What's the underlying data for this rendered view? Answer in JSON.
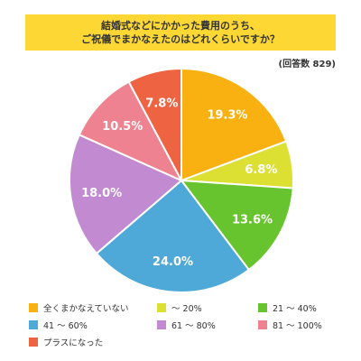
{
  "chart_data": {
    "type": "pie",
    "title_lines": [
      "結婚式などにかかった費用のうち、",
      "ご祝儀でまかなえたのはどれくらいですか？"
    ],
    "response_count_label": "(回答数 829)",
    "slices": [
      {
        "label": "全くまかなえていない",
        "value": 19.3,
        "display": "19.3%",
        "color": "#f9b011"
      },
      {
        "label": "～ 20%",
        "value": 6.8,
        "display": "6.8%",
        "color": "#dce032"
      },
      {
        "label": "21 ～ 40%",
        "value": 13.6,
        "display": "13.6%",
        "color": "#67c32e"
      },
      {
        "label": "41 ～ 60%",
        "value": 24.0,
        "display": "24.0%",
        "color": "#4fa9d8"
      },
      {
        "label": "61 ～ 80%",
        "value": 18.0,
        "display": "18.0%",
        "color": "#c28ad0"
      },
      {
        "label": "81 ～ 100%",
        "value": 10.5,
        "display": "10.5%",
        "color": "#ef8290"
      },
      {
        "label": "プラスになった",
        "value": 7.8,
        "display": "7.8%",
        "color": "#ee6341"
      }
    ],
    "start_angle": "12 o'clock",
    "direction": "clockwise",
    "legend_placement": "bottom"
  }
}
